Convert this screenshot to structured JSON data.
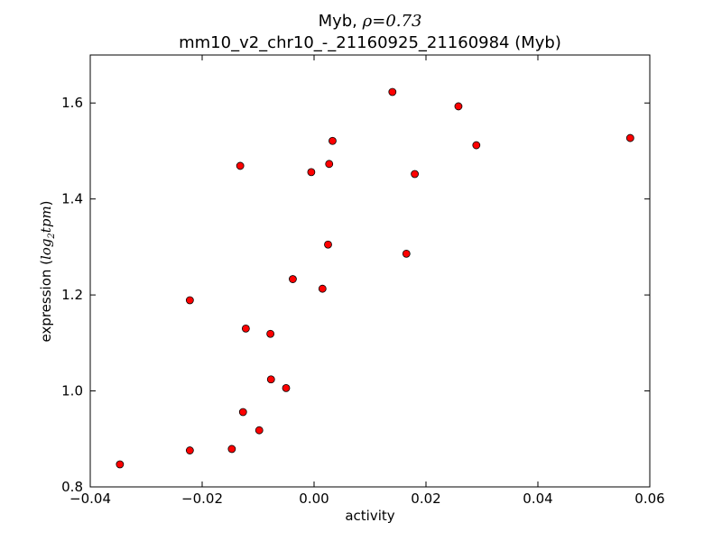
{
  "chart_data": {
    "type": "scatter",
    "title_line1_prefix": "Myb, ",
    "title_rho_symbol": "ρ",
    "title_rho_eq": "=",
    "title_rho_value": "0.73",
    "title_line2": "mm10_v2_chr10_-_21160925_21160984 (Myb)",
    "xlabel": "activity",
    "ylabel_prefix": "expression (",
    "ylabel_log": "log",
    "ylabel_sub": "2",
    "ylabel_tpm": "tpm",
    "ylabel_suffix": ")",
    "xlim": [
      -0.04,
      0.06
    ],
    "ylim": [
      0.8,
      1.7
    ],
    "xticks": [
      -0.04,
      -0.02,
      0.0,
      0.02,
      0.04,
      0.06
    ],
    "xtick_labels": [
      "−0.04",
      "−0.02",
      "0.00",
      "0.02",
      "0.04",
      "0.06"
    ],
    "yticks": [
      0.8,
      1.0,
      1.2,
      1.4,
      1.6
    ],
    "ytick_labels": [
      "0.8",
      "1.0",
      "1.2",
      "1.4",
      "1.6"
    ],
    "grid": false,
    "marker_color": "#ff0000",
    "marker_edge": "#000000",
    "points": [
      {
        "x": -0.0347,
        "y": 0.847
      },
      {
        "x": -0.0222,
        "y": 0.876
      },
      {
        "x": -0.0147,
        "y": 0.879
      },
      {
        "x": -0.0098,
        "y": 0.918
      },
      {
        "x": -0.0127,
        "y": 0.956
      },
      {
        "x": -0.0077,
        "y": 1.024
      },
      {
        "x": -0.005,
        "y": 1.006
      },
      {
        "x": -0.0222,
        "y": 1.189
      },
      {
        "x": -0.0122,
        "y": 1.13
      },
      {
        "x": -0.0078,
        "y": 1.119
      },
      {
        "x": -0.0038,
        "y": 1.233
      },
      {
        "x": 0.0015,
        "y": 1.213
      },
      {
        "x": 0.0025,
        "y": 1.305
      },
      {
        "x": 0.0165,
        "y": 1.286
      },
      {
        "x": -0.0132,
        "y": 1.469
      },
      {
        "x": -0.0005,
        "y": 1.456
      },
      {
        "x": 0.0027,
        "y": 1.473
      },
      {
        "x": 0.0033,
        "y": 1.521
      },
      {
        "x": 0.014,
        "y": 1.623
      },
      {
        "x": 0.018,
        "y": 1.452
      },
      {
        "x": 0.0258,
        "y": 1.593
      },
      {
        "x": 0.029,
        "y": 1.512
      },
      {
        "x": 0.0565,
        "y": 1.527
      }
    ]
  }
}
